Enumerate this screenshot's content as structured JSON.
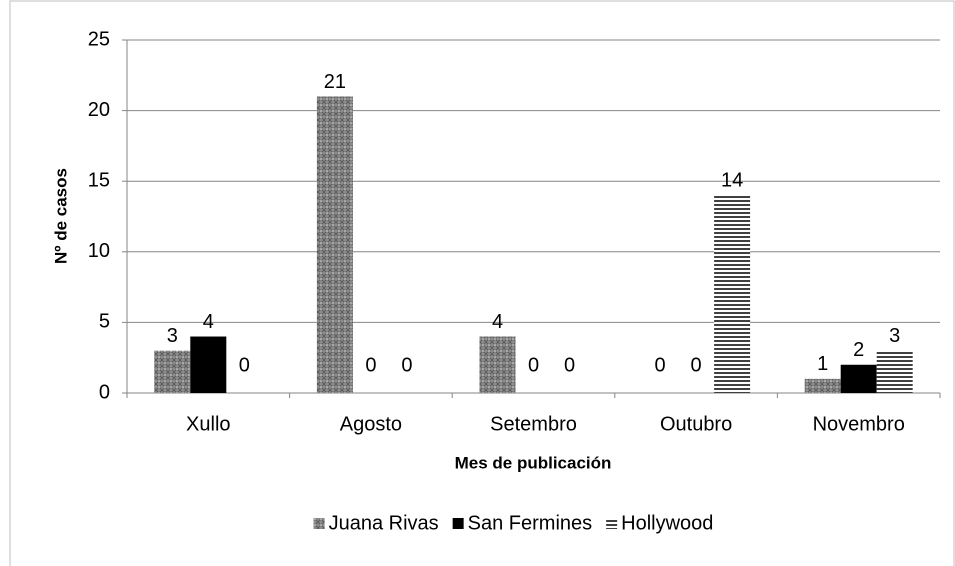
{
  "chart_data": {
    "type": "bar",
    "categories": [
      "Xullo",
      "Agosto",
      "Setembro",
      "Outubro",
      "Novembro"
    ],
    "series": [
      {
        "name": "Juana Rivas",
        "color": "#7f7f7f",
        "pattern": "dots",
        "values": [
          3,
          21,
          4,
          0,
          1
        ]
      },
      {
        "name": "San Fermines",
        "color": "#000000",
        "pattern": "solid",
        "values": [
          4,
          0,
          0,
          0,
          2
        ]
      },
      {
        "name": "Hollywood",
        "color": "#404040",
        "pattern": "stripes",
        "values": [
          0,
          0,
          0,
          14,
          3
        ]
      }
    ],
    "xlabel": "Mes de publicación",
    "ylabel": "Nº de casos",
    "ylim": [
      0,
      25
    ],
    "yticks": [
      0,
      5,
      10,
      15,
      20,
      25
    ],
    "grid": true,
    "legend": "bottom"
  }
}
